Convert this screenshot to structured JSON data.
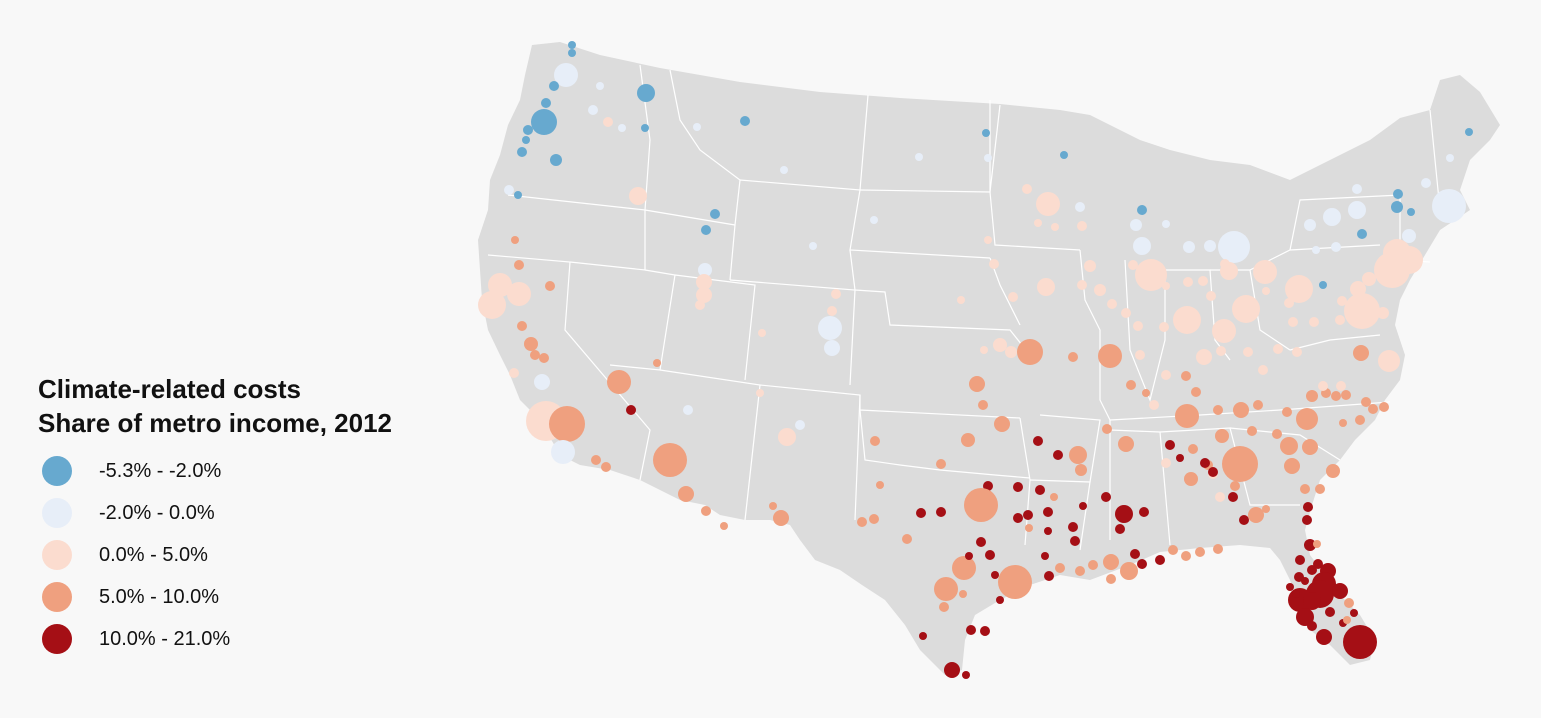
{
  "legend": {
    "title_line1": "Climate-related costs",
    "title_line2": "Share of metro income, 2012",
    "items": [
      {
        "label": "-5.3% - -2.0%",
        "color": "#67a9cf"
      },
      {
        "label": "-2.0% - 0.0%",
        "color": "#e7eef8"
      },
      {
        "label": "0.0% - 5.0%",
        "color": "#fbdccf"
      },
      {
        "label": "5.0% - 10.0%",
        "color": "#efa07f"
      },
      {
        "label": "10.0% - 21.0%",
        "color": "#a50f15"
      }
    ]
  },
  "map": {
    "land_color": "#dcdcdc",
    "border_color": "#ffffff"
  }
}
